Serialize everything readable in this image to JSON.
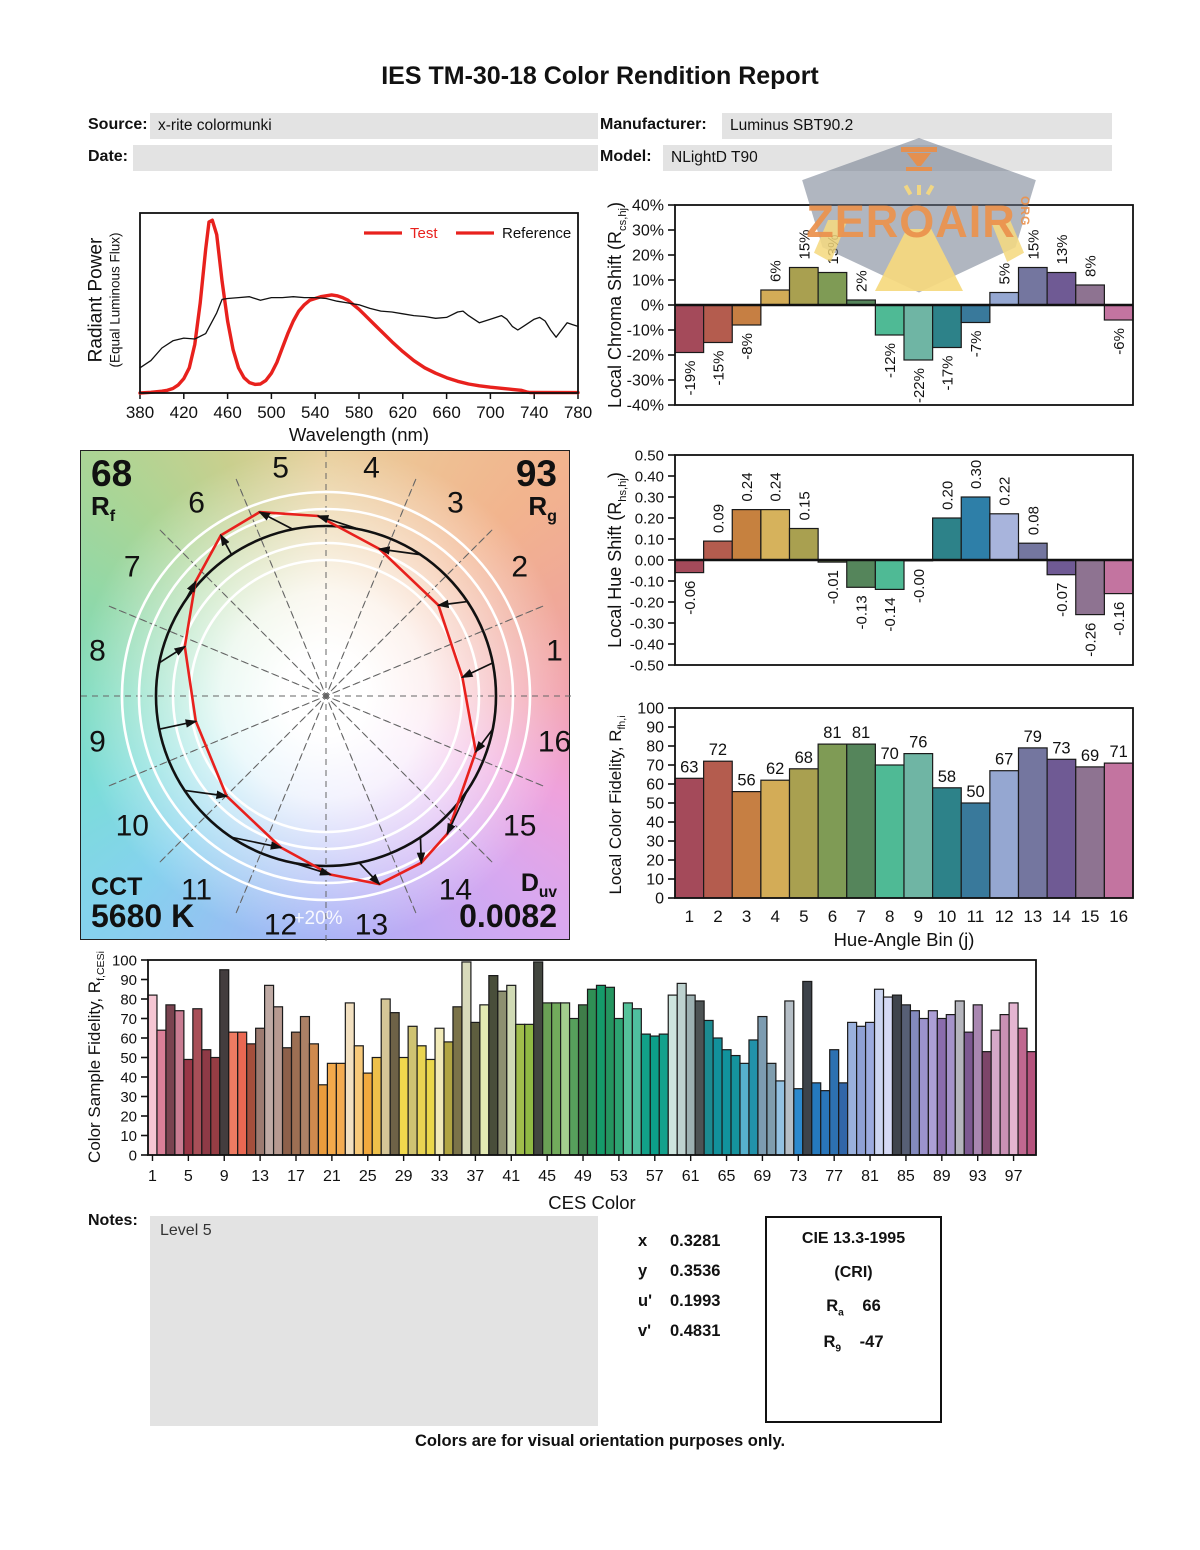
{
  "report": {
    "title": "IES TM-30-18 Color Rendition Report",
    "meta": {
      "source_label": "Source:",
      "source": "x-rite colormunki",
      "manufacturer_label": "Manufacturer:",
      "manufacturer": "Luminus SBT90.2",
      "date_label": "Date:",
      "date": "",
      "model_label": "Model:",
      "model": "NLightD T90"
    },
    "watermark": {
      "text": "ZEROAIR",
      "suffix": "ORG"
    },
    "notes_label": "Notes:",
    "notes": "Level 5",
    "chromaticity": [
      {
        "label": "x",
        "value": "0.3281"
      },
      {
        "label": "y",
        "value": "0.3536"
      },
      {
        "label": "u'",
        "value": "0.1993"
      },
      {
        "label": "v'",
        "value": "0.4831"
      }
    ],
    "cri_box": {
      "title": "CIE 13.3-1995",
      "subtitle": "(CRI)",
      "rows": [
        {
          "label": "R",
          "sub": "a",
          "value": "66"
        },
        {
          "label": "R",
          "sub": "9",
          "value": "-47"
        }
      ]
    },
    "footer": "Colors are for visual orientation purposes only."
  },
  "chart_data": [
    {
      "id": "spd",
      "type": "line",
      "xlabel": "Wavelength (nm)",
      "ylabel": "Radiant Power",
      "ylabel2": "(Equal Luminous Flux)",
      "xlim": [
        380,
        780
      ],
      "ylim": [
        0,
        1
      ],
      "xticks": [
        380,
        420,
        460,
        500,
        540,
        580,
        620,
        660,
        700,
        740,
        780
      ],
      "legend": [
        {
          "name": "Test",
          "text_color": "#e8211d",
          "line_color": "#e8211d"
        },
        {
          "name": "Reference",
          "text_color": "#111111",
          "line_color": "#e8211d"
        }
      ],
      "series": [
        {
          "name": "Test",
          "color": "#e8211d",
          "width": 3.4,
          "x": [
            380,
            390,
            400,
            405,
            410,
            415,
            420,
            425,
            430,
            435,
            440,
            443,
            446,
            450,
            455,
            460,
            465,
            470,
            475,
            480,
            485,
            490,
            495,
            500,
            505,
            510,
            515,
            520,
            525,
            530,
            535,
            540,
            545,
            550,
            555,
            560,
            565,
            570,
            575,
            580,
            585,
            590,
            595,
            600,
            610,
            620,
            630,
            640,
            650,
            660,
            670,
            680,
            690,
            700,
            710,
            720,
            728,
            733,
            736,
            780
          ],
          "y": [
            0,
            0.004,
            0.01,
            0.015,
            0.025,
            0.045,
            0.08,
            0.14,
            0.27,
            0.5,
            0.8,
            0.95,
            0.96,
            0.88,
            0.62,
            0.4,
            0.24,
            0.14,
            0.085,
            0.058,
            0.048,
            0.05,
            0.07,
            0.11,
            0.17,
            0.25,
            0.33,
            0.4,
            0.455,
            0.49,
            0.515,
            0.525,
            0.535,
            0.54,
            0.545,
            0.54,
            0.53,
            0.515,
            0.49,
            0.465,
            0.435,
            0.405,
            0.375,
            0.345,
            0.285,
            0.23,
            0.18,
            0.14,
            0.11,
            0.085,
            0.065,
            0.05,
            0.04,
            0.032,
            0.026,
            0.02,
            0.015,
            0.006,
            0.003,
            0.002
          ]
        },
        {
          "name": "Reference",
          "color": "#111111",
          "width": 1.3,
          "x": [
            380,
            390,
            400,
            410,
            420,
            430,
            440,
            450,
            455,
            460,
            470,
            480,
            490,
            500,
            510,
            520,
            530,
            540,
            550,
            560,
            570,
            580,
            590,
            600,
            610,
            620,
            630,
            640,
            650,
            660,
            670,
            675,
            680,
            690,
            695,
            700,
            710,
            715,
            720,
            725,
            730,
            740,
            745,
            750,
            755,
            760,
            765,
            770,
            775,
            780
          ],
          "y": [
            0.14,
            0.18,
            0.25,
            0.29,
            0.305,
            0.3,
            0.33,
            0.445,
            0.52,
            0.525,
            0.53,
            0.535,
            0.515,
            0.53,
            0.53,
            0.535,
            0.53,
            0.53,
            0.525,
            0.51,
            0.5,
            0.49,
            0.47,
            0.455,
            0.45,
            0.44,
            0.43,
            0.425,
            0.415,
            0.42,
            0.45,
            0.455,
            0.43,
            0.39,
            0.4,
            0.41,
            0.43,
            0.41,
            0.37,
            0.35,
            0.37,
            0.41,
            0.42,
            0.4,
            0.35,
            0.31,
            0.35,
            0.39,
            0.38,
            0.37
          ]
        }
      ]
    },
    {
      "id": "chroma",
      "type": "bar",
      "ylabel_prefix": "Local Chroma Shift (R",
      "ylabel_sub": "cs,hj",
      "ylabel_suffix": ")",
      "categories": [
        1,
        2,
        3,
        4,
        5,
        6,
        7,
        8,
        9,
        10,
        11,
        12,
        13,
        14,
        15,
        16
      ],
      "values": [
        -19,
        -15,
        -8,
        6,
        15,
        13,
        2,
        -12,
        -22,
        -17,
        -7,
        5,
        15,
        13,
        8,
        -6
      ],
      "labels": [
        "-19%",
        "-15%",
        "-8%",
        "6%",
        "15%",
        "13%",
        "2%",
        "-12%",
        "-22%",
        "-17%",
        "-7%",
        "5%",
        "15%",
        "13%",
        "8%",
        "-6%"
      ],
      "ylim": [
        -40,
        40
      ],
      "ytick_step": 10,
      "ytick_format": "pct",
      "bar_colors": [
        "#a44a5a",
        "#b45c4e",
        "#c67f43",
        "#d3ac57",
        "#a9a050",
        "#7f9b55",
        "#55855b",
        "#4fba95",
        "#6fb5a4",
        "#2d8289",
        "#39799b",
        "#95a7d1",
        "#74769f",
        "#6f5a94",
        "#8e7391",
        "#c374a0"
      ]
    },
    {
      "id": "cvg",
      "type": "color-vector-graphic",
      "rf": {
        "value": "68",
        "label": "R",
        "sub": "f"
      },
      "rg": {
        "value": "93",
        "label": "R",
        "sub": "g"
      },
      "cct": {
        "label": "CCT",
        "value": "5680 K"
      },
      "duv": {
        "label": "D",
        "sub": "uv",
        "value": "0.0082"
      },
      "gradation_label": "+20%",
      "bin_labels": [
        "1",
        "2",
        "3",
        "4",
        "5",
        "6",
        "7",
        "8",
        "9",
        "10",
        "11",
        "12",
        "13",
        "14",
        "15",
        "16"
      ],
      "chroma_shift_pct": [
        -19,
        -15,
        -8,
        6,
        15,
        13,
        2,
        -12,
        -22,
        -17,
        -7,
        5,
        15,
        13,
        8,
        -6
      ],
      "hue_shift": [
        -0.06,
        0.09,
        0.24,
        0.24,
        0.15,
        -0.01,
        -0.13,
        -0.14,
        -0.004,
        0.2,
        0.3,
        0.22,
        0.08,
        -0.07,
        -0.26,
        -0.16
      ],
      "reference_color": "#111111",
      "test_color": "#e8211d"
    },
    {
      "id": "hue",
      "type": "bar",
      "ylabel_prefix": "Local Hue Shift (R",
      "ylabel_sub": "hs,hj",
      "ylabel_suffix": ")",
      "categories": [
        1,
        2,
        3,
        4,
        5,
        6,
        7,
        8,
        9,
        10,
        11,
        12,
        13,
        14,
        15,
        16
      ],
      "values": [
        -0.06,
        0.09,
        0.24,
        0.24,
        0.15,
        -0.01,
        -0.13,
        -0.14,
        -0.004,
        0.2,
        0.3,
        0.22,
        0.08,
        -0.07,
        -0.26,
        -0.16
      ],
      "labels": [
        "-0.06",
        "0.09",
        "0.24",
        "0.24",
        "0.15",
        "-0.01",
        "-0.13",
        "-0.14",
        "-0.00",
        "0.20",
        "0.30",
        "0.22",
        "0.08",
        "-0.07",
        "-0.26",
        "-0.16"
      ],
      "ylim": [
        -0.5,
        0.5
      ],
      "ytick_step": 0.1,
      "ytick_format": "f2",
      "bar_colors": [
        "#a44a5a",
        "#b45c4e",
        "#c6813f",
        "#d6b25c",
        "#a9a050",
        "#7f9b55",
        "#55855b",
        "#4fba95",
        "#6fb5a4",
        "#2d8289",
        "#2e7fa8",
        "#a8b4dc",
        "#74769f",
        "#6f5a94",
        "#8e7391",
        "#c374a0"
      ]
    },
    {
      "id": "fid16",
      "type": "bar",
      "ylabel_prefix": "Local Color Fidelity, R",
      "ylabel_sub": "fh,i",
      "ylabel_suffix": "",
      "xlabel": "Hue-Angle Bin (j)",
      "categories": [
        1,
        2,
        3,
        4,
        5,
        6,
        7,
        8,
        9,
        10,
        11,
        12,
        13,
        14,
        15,
        16
      ],
      "values": [
        63,
        72,
        56,
        62,
        68,
        81,
        81,
        70,
        76,
        58,
        50,
        67,
        79,
        73,
        69,
        71
      ],
      "labels": [
        "63",
        "72",
        "56",
        "62",
        "68",
        "81",
        "81",
        "70",
        "76",
        "58",
        "50",
        "67",
        "79",
        "73",
        "69",
        "71"
      ],
      "ylim": [
        0,
        100
      ],
      "ytick_step": 10,
      "ytick_format": "int",
      "xticks": [
        1,
        2,
        3,
        4,
        5,
        6,
        7,
        8,
        9,
        10,
        11,
        12,
        13,
        14,
        15,
        16
      ],
      "bar_colors": [
        "#a44a5a",
        "#b45c4e",
        "#c67f43",
        "#d3ac57",
        "#a9a050",
        "#7f9b55",
        "#55855b",
        "#4fba95",
        "#6fb5a4",
        "#2d8289",
        "#39799b",
        "#95a7d1",
        "#74769f",
        "#6f5a94",
        "#8e7391",
        "#c374a0"
      ]
    },
    {
      "id": "ces",
      "type": "bar",
      "ylabel_prefix": "Color Sample Fidelity, R",
      "ylabel_sub": "f,CESi",
      "ylabel_suffix": "",
      "xlabel": "CES Color",
      "categories_note": "CES01 through CES99",
      "values": [
        82,
        64,
        77,
        74,
        49,
        75,
        54,
        50,
        95,
        63,
        63,
        57,
        65,
        87,
        76,
        55,
        63,
        71,
        57,
        36,
        47,
        47,
        78,
        56,
        42,
        50,
        80,
        73,
        50,
        66,
        56,
        49,
        65,
        58,
        76,
        99,
        68,
        77,
        92,
        84,
        87,
        67,
        67,
        99,
        78,
        78,
        78,
        70,
        77,
        85,
        87,
        86,
        70,
        78,
        75,
        62,
        61,
        62,
        82,
        88,
        82,
        79,
        69,
        60,
        54,
        51,
        47,
        59,
        71,
        47,
        38,
        79,
        34,
        89,
        37,
        33,
        54,
        37,
        68,
        66,
        68,
        85,
        81,
        82,
        77,
        74,
        70,
        74,
        70,
        72,
        79,
        63,
        77,
        53,
        64,
        72,
        78,
        65,
        53
      ],
      "ylim": [
        0,
        100
      ],
      "ytick_step": 10,
      "ytick_format": "int",
      "xticks": [
        1,
        5,
        9,
        13,
        17,
        21,
        25,
        29,
        33,
        37,
        41,
        45,
        49,
        53,
        57,
        61,
        65,
        69,
        73,
        77,
        81,
        85,
        89,
        93,
        97
      ],
      "bar_colors": [
        "#f5c6d3",
        "#da7f98",
        "#7a4350",
        "#c97c92",
        "#993747",
        "#a84f58",
        "#8e3a46",
        "#963d44",
        "#433d3e",
        "#ee7b62",
        "#ea6852",
        "#a44f3c",
        "#9c7b71",
        "#bfaaa4",
        "#b79a91",
        "#8d604a",
        "#9c6f53",
        "#ac8166",
        "#cf8a4e",
        "#ea9c3c",
        "#f2a94b",
        "#f3ab50",
        "#f2e0c0",
        "#f7c97a",
        "#f1a93e",
        "#eec04a",
        "#d5c697",
        "#6e6247",
        "#f0d84d",
        "#cfc372",
        "#e9d452",
        "#ead74b",
        "#f1eab8",
        "#b1a542",
        "#7b7349",
        "#d8dabb",
        "#5e5e3f",
        "#e2e9b3",
        "#494e3a",
        "#8d9070",
        "#d0dab4",
        "#a0bd4b",
        "#90b944",
        "#42463f",
        "#6aa055",
        "#72ab5c",
        "#a3cd8d",
        "#57a05c",
        "#3f7d49",
        "#2f8f55",
        "#159a6a",
        "#259560",
        "#2da472",
        "#55c29a",
        "#4fbf9f",
        "#12a189",
        "#0c9f8a",
        "#13a18c",
        "#cde5de",
        "#bdd2cf",
        "#9db1b2",
        "#4d5354",
        "#1c8b91",
        "#12919b",
        "#11939d",
        "#15939d",
        "#57b1cd",
        "#2292aa",
        "#7d9cb1",
        "#7f9dae",
        "#93c1e1",
        "#b5bec6",
        "#2c89cd",
        "#3d434a",
        "#2579bd",
        "#2975b9",
        "#2d71b1",
        "#3166a9",
        "#9ab1dd",
        "#8fa1d5",
        "#9cabdf",
        "#ccd5f1",
        "#d5d9f5",
        "#3f444c",
        "#575f75",
        "#838abd",
        "#9b93cd",
        "#ac9fd5",
        "#8b6dad",
        "#a593c9",
        "#b5b5bd",
        "#7d5991",
        "#a987b1",
        "#7d4569",
        "#d5a9c9",
        "#c991b5",
        "#e5b5d1",
        "#c06890",
        "#b5537d"
      ]
    }
  ]
}
